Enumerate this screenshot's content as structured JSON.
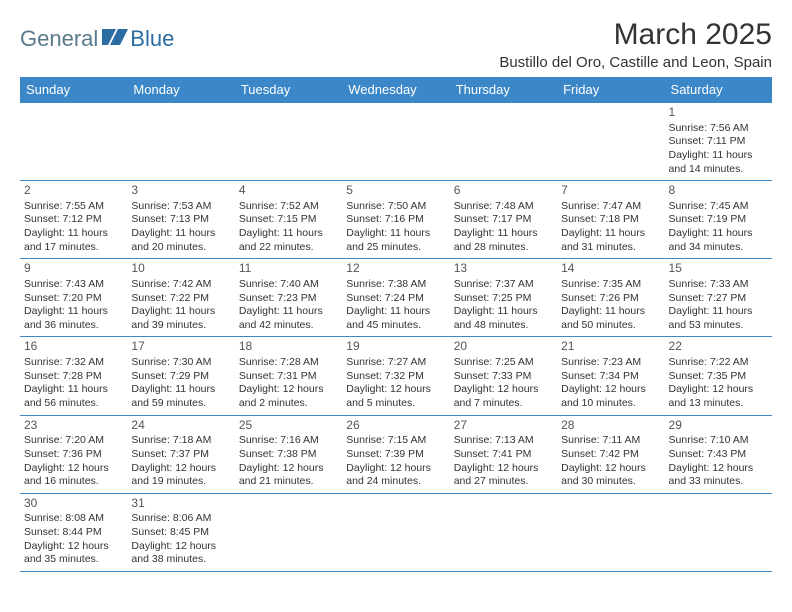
{
  "logo": {
    "part1": "General",
    "part2": "Blue"
  },
  "title": "March 2025",
  "location": "Bustillo del Oro, Castille and Leon, Spain",
  "colors": {
    "header_bg": "#3b87c8",
    "header_text": "#ffffff",
    "border": "#3b87c8",
    "text": "#333333",
    "logo1": "#5a7a8c",
    "logo2": "#2b6ca3"
  },
  "day_headers": [
    "Sunday",
    "Monday",
    "Tuesday",
    "Wednesday",
    "Thursday",
    "Friday",
    "Saturday"
  ],
  "weeks": [
    [
      null,
      null,
      null,
      null,
      null,
      null,
      {
        "n": "1",
        "sr": "7:56 AM",
        "ss": "7:11 PM",
        "dl": "11 hours and 14 minutes."
      }
    ],
    [
      {
        "n": "2",
        "sr": "7:55 AM",
        "ss": "7:12 PM",
        "dl": "11 hours and 17 minutes."
      },
      {
        "n": "3",
        "sr": "7:53 AM",
        "ss": "7:13 PM",
        "dl": "11 hours and 20 minutes."
      },
      {
        "n": "4",
        "sr": "7:52 AM",
        "ss": "7:15 PM",
        "dl": "11 hours and 22 minutes."
      },
      {
        "n": "5",
        "sr": "7:50 AM",
        "ss": "7:16 PM",
        "dl": "11 hours and 25 minutes."
      },
      {
        "n": "6",
        "sr": "7:48 AM",
        "ss": "7:17 PM",
        "dl": "11 hours and 28 minutes."
      },
      {
        "n": "7",
        "sr": "7:47 AM",
        "ss": "7:18 PM",
        "dl": "11 hours and 31 minutes."
      },
      {
        "n": "8",
        "sr": "7:45 AM",
        "ss": "7:19 PM",
        "dl": "11 hours and 34 minutes."
      }
    ],
    [
      {
        "n": "9",
        "sr": "7:43 AM",
        "ss": "7:20 PM",
        "dl": "11 hours and 36 minutes."
      },
      {
        "n": "10",
        "sr": "7:42 AM",
        "ss": "7:22 PM",
        "dl": "11 hours and 39 minutes."
      },
      {
        "n": "11",
        "sr": "7:40 AM",
        "ss": "7:23 PM",
        "dl": "11 hours and 42 minutes."
      },
      {
        "n": "12",
        "sr": "7:38 AM",
        "ss": "7:24 PM",
        "dl": "11 hours and 45 minutes."
      },
      {
        "n": "13",
        "sr": "7:37 AM",
        "ss": "7:25 PM",
        "dl": "11 hours and 48 minutes."
      },
      {
        "n": "14",
        "sr": "7:35 AM",
        "ss": "7:26 PM",
        "dl": "11 hours and 50 minutes."
      },
      {
        "n": "15",
        "sr": "7:33 AM",
        "ss": "7:27 PM",
        "dl": "11 hours and 53 minutes."
      }
    ],
    [
      {
        "n": "16",
        "sr": "7:32 AM",
        "ss": "7:28 PM",
        "dl": "11 hours and 56 minutes."
      },
      {
        "n": "17",
        "sr": "7:30 AM",
        "ss": "7:29 PM",
        "dl": "11 hours and 59 minutes."
      },
      {
        "n": "18",
        "sr": "7:28 AM",
        "ss": "7:31 PM",
        "dl": "12 hours and 2 minutes."
      },
      {
        "n": "19",
        "sr": "7:27 AM",
        "ss": "7:32 PM",
        "dl": "12 hours and 5 minutes."
      },
      {
        "n": "20",
        "sr": "7:25 AM",
        "ss": "7:33 PM",
        "dl": "12 hours and 7 minutes."
      },
      {
        "n": "21",
        "sr": "7:23 AM",
        "ss": "7:34 PM",
        "dl": "12 hours and 10 minutes."
      },
      {
        "n": "22",
        "sr": "7:22 AM",
        "ss": "7:35 PM",
        "dl": "12 hours and 13 minutes."
      }
    ],
    [
      {
        "n": "23",
        "sr": "7:20 AM",
        "ss": "7:36 PM",
        "dl": "12 hours and 16 minutes."
      },
      {
        "n": "24",
        "sr": "7:18 AM",
        "ss": "7:37 PM",
        "dl": "12 hours and 19 minutes."
      },
      {
        "n": "25",
        "sr": "7:16 AM",
        "ss": "7:38 PM",
        "dl": "12 hours and 21 minutes."
      },
      {
        "n": "26",
        "sr": "7:15 AM",
        "ss": "7:39 PM",
        "dl": "12 hours and 24 minutes."
      },
      {
        "n": "27",
        "sr": "7:13 AM",
        "ss": "7:41 PM",
        "dl": "12 hours and 27 minutes."
      },
      {
        "n": "28",
        "sr": "7:11 AM",
        "ss": "7:42 PM",
        "dl": "12 hours and 30 minutes."
      },
      {
        "n": "29",
        "sr": "7:10 AM",
        "ss": "7:43 PM",
        "dl": "12 hours and 33 minutes."
      }
    ],
    [
      {
        "n": "30",
        "sr": "8:08 AM",
        "ss": "8:44 PM",
        "dl": "12 hours and 35 minutes."
      },
      {
        "n": "31",
        "sr": "8:06 AM",
        "ss": "8:45 PM",
        "dl": "12 hours and 38 minutes."
      },
      null,
      null,
      null,
      null,
      null
    ]
  ],
  "labels": {
    "sunrise": "Sunrise:",
    "sunset": "Sunset:",
    "daylight": "Daylight:"
  }
}
